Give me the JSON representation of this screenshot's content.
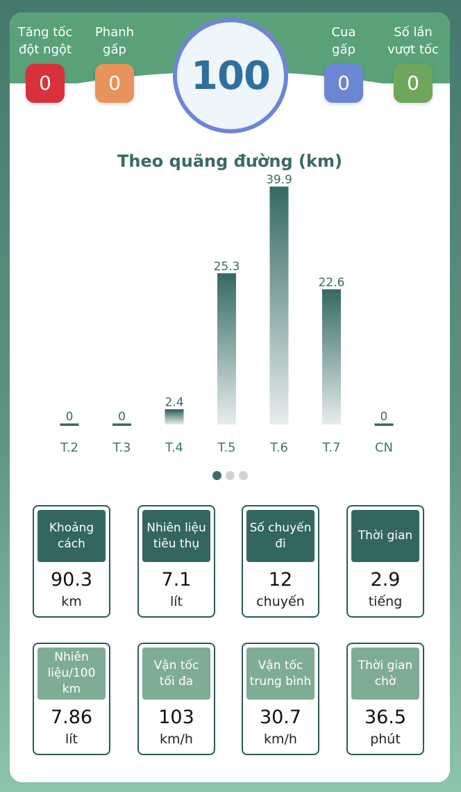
{
  "events": [
    {
      "label": "Tăng tốc\nđột ngột",
      "count": "0",
      "color": "#d9313c"
    },
    {
      "label": "Phanh\ngấp",
      "count": "0",
      "color": "#e8925c"
    },
    {
      "label": "Cua\ngấp",
      "count": "0",
      "color": "#6c86d6"
    },
    {
      "label": "Số lần\nvượt tốc",
      "count": "0",
      "color": "#6fa65d"
    }
  ],
  "score": "100",
  "chart_data": {
    "type": "bar",
    "title": "Theo quãng đường (km)",
    "categories": [
      "T.2",
      "T.3",
      "T.4",
      "T.5",
      "T.6",
      "T.7",
      "CN"
    ],
    "values": [
      0,
      0,
      2.4,
      25.3,
      39.9,
      22.6,
      0
    ],
    "value_labels": [
      "0",
      "0",
      "2.4",
      "25.3",
      "39.9",
      "22.6",
      "0"
    ],
    "ylim": [
      0,
      39.9
    ],
    "bar_color": "#366a65"
  },
  "pager": {
    "pages": 3,
    "active": 0
  },
  "stats_row1": [
    {
      "label": "Khoảng\ncách",
      "value": "90.3",
      "unit": "km"
    },
    {
      "label": "Nhiên liệu\ntiêu thụ",
      "value": "7.1",
      "unit": "lít"
    },
    {
      "label": "Số chuyến\nđi",
      "value": "12",
      "unit": "chuyến"
    },
    {
      "label": "Thời gian",
      "value": "2.9",
      "unit": "tiếng"
    }
  ],
  "stats_row2": [
    {
      "label": "Nhiên\nliệu/100\nkm",
      "value": "7.86",
      "unit": "lít"
    },
    {
      "label": "Vận tốc\ntối đa",
      "value": "103",
      "unit": "km/h"
    },
    {
      "label": "Vận tốc\ntrung bình",
      "value": "30.7",
      "unit": "km/h"
    },
    {
      "label": "Thời gian\nchờ",
      "value": "36.5",
      "unit": "phút"
    }
  ]
}
